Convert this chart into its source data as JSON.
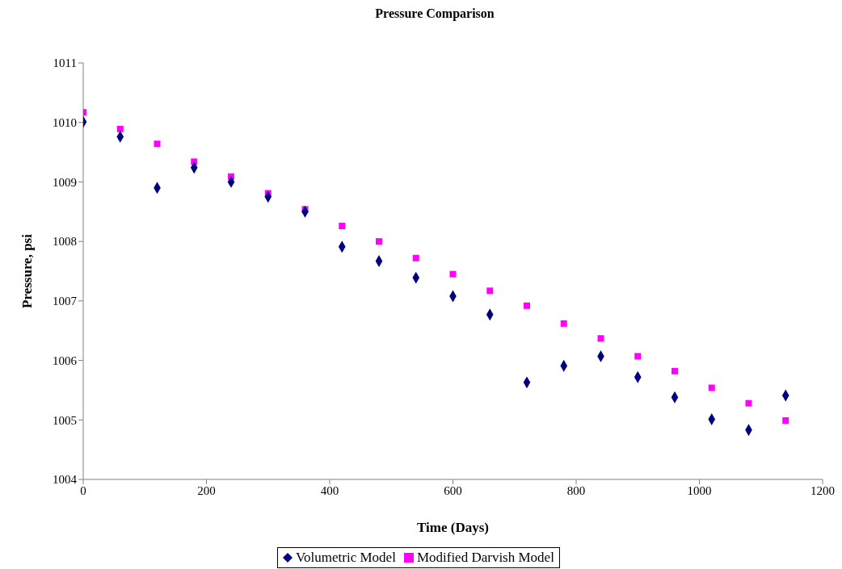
{
  "chart_data": {
    "type": "scatter",
    "title": "Pressure Comparison",
    "xlabel": "Time (Days)",
    "ylabel": "Pressure, psi",
    "xlim": [
      0,
      1200
    ],
    "xticks": [
      0,
      200,
      400,
      600,
      800,
      1000,
      1200
    ],
    "ylim": [
      1004,
      1011
    ],
    "yticks": [
      1004,
      1005,
      1006,
      1007,
      1008,
      1009,
      1010,
      1011
    ],
    "grid": false,
    "legend": "bottom",
    "x": [
      0,
      60,
      120,
      180,
      240,
      300,
      360,
      420,
      480,
      540,
      600,
      660,
      720,
      780,
      840,
      900,
      960,
      1020,
      1080,
      1140
    ],
    "series": [
      {
        "name": "Volumetric Model",
        "color": "#000080",
        "marker": "diamond",
        "values": [
          1010.01,
          1009.76,
          1008.9,
          1009.24,
          1009.0,
          1008.75,
          1008.5,
          1007.91,
          1007.67,
          1007.39,
          1007.08,
          1006.77,
          1005.63,
          1005.91,
          1006.07,
          1005.72,
          1005.38,
          1005.01,
          1004.83,
          1005.41
        ]
      },
      {
        "name": "Modified Darvish Model",
        "color": "#ff00ff",
        "marker": "square",
        "values": [
          1010.17,
          1009.89,
          1009.64,
          1009.34,
          1009.09,
          1008.81,
          1008.54,
          1008.26,
          1008.0,
          1007.72,
          1007.45,
          1007.17,
          1006.92,
          1006.62,
          1006.37,
          1006.07,
          1005.82,
          1005.54,
          1005.28,
          1004.99
        ]
      }
    ]
  }
}
